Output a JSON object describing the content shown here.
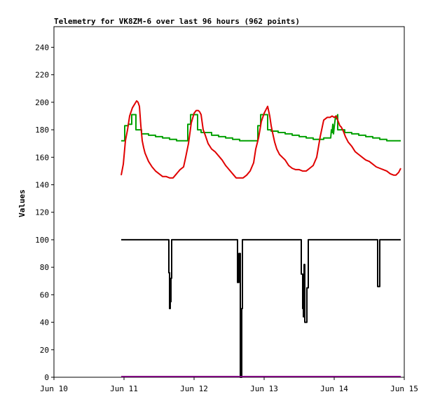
{
  "chart_data": {
    "type": "line",
    "title": "Telemetry for VK8ZM-6 over last 96 hours (962 points)",
    "xlabel": "",
    "ylabel": "Values",
    "xlim": [
      0,
      5
    ],
    "ylim": [
      0,
      255
    ],
    "x_ticks": [
      {
        "value": 0,
        "label": "Jun 10"
      },
      {
        "value": 1,
        "label": "Jun 11"
      },
      {
        "value": 2,
        "label": "Jun 12"
      },
      {
        "value": 3,
        "label": "Jun 13"
      },
      {
        "value": 4,
        "label": "Jun 14"
      },
      {
        "value": 5,
        "label": "Jun 15"
      }
    ],
    "y_ticks": [
      0,
      20,
      40,
      60,
      80,
      100,
      120,
      140,
      160,
      180,
      200,
      220,
      240
    ],
    "grid": false,
    "legend": "none",
    "series": [
      {
        "color": "#00a000",
        "x": [
          0.96,
          1.01,
          1.01,
          1.06,
          1.06,
          1.11,
          1.11,
          1.17,
          1.17,
          1.25,
          1.25,
          1.35,
          1.35,
          1.45,
          1.45,
          1.55,
          1.55,
          1.65,
          1.65,
          1.75,
          1.75,
          1.91,
          1.91,
          1.95,
          1.95,
          2.05,
          2.05,
          2.1,
          2.1,
          2.25,
          2.25,
          2.35,
          2.35,
          2.45,
          2.45,
          2.55,
          2.55,
          2.65,
          2.65,
          2.75,
          2.75,
          2.91,
          2.91,
          2.95,
          2.95,
          3.05,
          3.05,
          3.1,
          3.1,
          3.2,
          3.2,
          3.3,
          3.3,
          3.4,
          3.4,
          3.5,
          3.5,
          3.6,
          3.6,
          3.7,
          3.7,
          3.85,
          3.85,
          3.95,
          3.96,
          3.97,
          3.98,
          3.99,
          4.0,
          4.01,
          4.02,
          4.03,
          4.05,
          4.05,
          4.1,
          4.15,
          4.15,
          4.25,
          4.25,
          4.35,
          4.35,
          4.45,
          4.45,
          4.55,
          4.55,
          4.65,
          4.65,
          4.75,
          4.75,
          4.85,
          4.85,
          4.95
        ],
        "y": [
          172,
          172,
          183,
          183,
          184,
          184,
          191,
          191,
          180,
          180,
          177,
          177,
          176,
          176,
          175,
          175,
          174,
          174,
          173,
          173,
          172,
          172,
          184,
          184,
          191,
          191,
          180,
          180,
          178,
          178,
          176,
          176,
          175,
          175,
          174,
          174,
          173,
          173,
          172,
          172,
          172,
          172,
          183,
          183,
          191,
          191,
          180,
          180,
          179,
          179,
          178,
          178,
          177,
          177,
          176,
          176,
          175,
          175,
          174,
          174,
          173,
          173,
          174,
          174,
          180,
          178,
          184,
          177,
          182,
          186,
          190,
          188,
          191,
          180,
          180,
          180,
          178,
          178,
          177,
          177,
          176,
          176,
          175,
          175,
          174,
          174,
          173,
          173,
          172,
          172,
          172,
          172
        ]
      },
      {
        "color": "#e00000",
        "x": [
          0.96,
          0.99,
          1.02,
          1.05,
          1.08,
          1.12,
          1.18,
          1.2,
          1.22,
          1.24,
          1.26,
          1.28,
          1.3,
          1.35,
          1.4,
          1.45,
          1.5,
          1.55,
          1.6,
          1.65,
          1.7,
          1.75,
          1.8,
          1.85,
          1.88,
          1.92,
          1.96,
          2.0,
          2.03,
          2.06,
          2.08,
          2.1,
          2.13,
          2.16,
          2.2,
          2.25,
          2.3,
          2.35,
          2.4,
          2.45,
          2.5,
          2.55,
          2.6,
          2.65,
          2.7,
          2.75,
          2.8,
          2.85,
          2.88,
          2.92,
          2.96,
          3.0,
          3.03,
          3.05,
          3.08,
          3.1,
          3.12,
          3.15,
          3.18,
          3.22,
          3.26,
          3.3,
          3.35,
          3.4,
          3.45,
          3.5,
          3.55,
          3.6,
          3.65,
          3.7,
          3.75,
          3.8,
          3.85,
          3.9,
          3.94,
          3.97,
          4.0,
          4.03,
          4.05,
          4.08,
          4.1,
          4.13,
          4.16,
          4.2,
          4.25,
          4.3,
          4.35,
          4.4,
          4.45,
          4.5,
          4.55,
          4.6,
          4.65,
          4.7,
          4.75,
          4.8,
          4.85,
          4.88,
          4.92,
          4.95
        ],
        "y": [
          147,
          155,
          172,
          180,
          190,
          196,
          201,
          200,
          197,
          183,
          172,
          167,
          163,
          157,
          153,
          150,
          148,
          146,
          146,
          145,
          145,
          148,
          151,
          153,
          160,
          170,
          185,
          192,
          194,
          194,
          193,
          191,
          180,
          176,
          170,
          166,
          164,
          161,
          158,
          154,
          151,
          148,
          145,
          145,
          145,
          147,
          150,
          156,
          166,
          174,
          186,
          192,
          195,
          197,
          190,
          183,
          178,
          171,
          166,
          162,
          160,
          158,
          154,
          152,
          151,
          151,
          150,
          150,
          152,
          154,
          160,
          175,
          187,
          189,
          189,
          190,
          189,
          190,
          187,
          183,
          182,
          179,
          175,
          171,
          168,
          164,
          162,
          160,
          158,
          157,
          155,
          153,
          152,
          151,
          150,
          148,
          147,
          147,
          149,
          152
        ]
      },
      {
        "color": "#000000",
        "x": [
          0.96,
          1.64,
          1.64,
          1.65,
          1.65,
          1.66,
          1.66,
          1.67,
          1.67,
          1.68,
          1.68,
          2.62,
          2.62,
          2.64,
          2.64,
          2.66,
          2.66,
          2.68,
          2.68,
          2.69,
          2.69,
          3.53,
          3.53,
          3.55,
          3.55,
          3.56,
          3.56,
          3.57,
          3.57,
          3.58,
          3.58,
          3.61,
          3.61,
          3.63,
          3.63,
          4.62,
          4.62,
          4.65,
          4.65,
          4.95
        ],
        "y": [
          100,
          100,
          76,
          76,
          50,
          50,
          55,
          55,
          72,
          72,
          100,
          100,
          69,
          69,
          90,
          90,
          0,
          0,
          50,
          50,
          100,
          100,
          75,
          75,
          50,
          50,
          44,
          44,
          82,
          82,
          40,
          40,
          65,
          65,
          100,
          100,
          66,
          66,
          100,
          100
        ]
      },
      {
        "color": "#800080",
        "x": [
          0.96,
          4.95
        ],
        "y": [
          0.5,
          0.5
        ]
      }
    ]
  }
}
